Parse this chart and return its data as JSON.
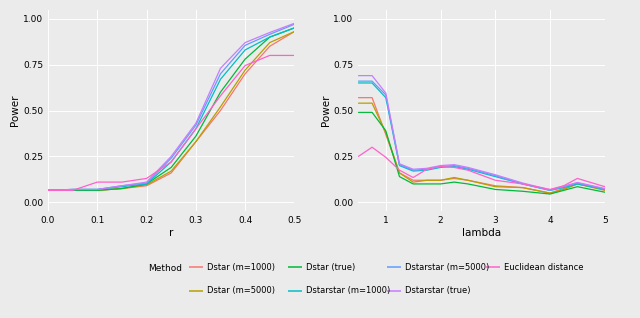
{
  "left_xlabel": "r",
  "right_xlabel": "lambda",
  "ylabel": "Power",
  "bg_color": "#EBEBEB",
  "grid_color": "white",
  "left_xlim": [
    0.0,
    0.5
  ],
  "right_xlim": [
    0.5,
    5.0
  ],
  "ylim": [
    -0.05,
    1.05
  ],
  "yticks": [
    0.0,
    0.25,
    0.5,
    0.75,
    1.0
  ],
  "left_xticks": [
    0.0,
    0.1,
    0.2,
    0.3,
    0.4,
    0.5
  ],
  "right_xticks": [
    1,
    2,
    3,
    4,
    5
  ],
  "series": [
    {
      "label": "Dstar (m=1000)",
      "color": "#F8766D",
      "lw": 0.9,
      "left_x": [
        0.0,
        0.05,
        0.1,
        0.15,
        0.2,
        0.25,
        0.3,
        0.35,
        0.4,
        0.45,
        0.5
      ],
      "left_y": [
        0.065,
        0.065,
        0.065,
        0.075,
        0.09,
        0.16,
        0.33,
        0.5,
        0.7,
        0.85,
        0.93
      ],
      "right_x": [
        0.5,
        0.75,
        1.0,
        1.25,
        1.5,
        1.75,
        2.0,
        2.25,
        2.5,
        3.0,
        3.5,
        4.0,
        4.25,
        4.5,
        5.0
      ],
      "right_y": [
        0.57,
        0.57,
        0.37,
        0.16,
        0.12,
        0.12,
        0.12,
        0.13,
        0.12,
        0.09,
        0.08,
        0.05,
        0.075,
        0.1,
        0.07
      ]
    },
    {
      "label": "Dstar (m=5000)",
      "color": "#B79F00",
      "lw": 0.9,
      "left_x": [
        0.0,
        0.05,
        0.1,
        0.15,
        0.2,
        0.25,
        0.3,
        0.35,
        0.4,
        0.45,
        0.5
      ],
      "left_y": [
        0.065,
        0.065,
        0.065,
        0.075,
        0.095,
        0.17,
        0.33,
        0.52,
        0.72,
        0.87,
        0.93
      ],
      "right_x": [
        0.5,
        0.75,
        1.0,
        1.25,
        1.5,
        1.75,
        2.0,
        2.25,
        2.5,
        3.0,
        3.5,
        4.0,
        4.25,
        4.5,
        5.0
      ],
      "right_y": [
        0.54,
        0.54,
        0.38,
        0.16,
        0.11,
        0.12,
        0.12,
        0.135,
        0.12,
        0.085,
        0.08,
        0.05,
        0.07,
        0.1,
        0.065
      ]
    },
    {
      "label": "Dstar (true)",
      "color": "#00BA38",
      "lw": 0.9,
      "left_x": [
        0.0,
        0.05,
        0.1,
        0.15,
        0.2,
        0.25,
        0.3,
        0.35,
        0.4,
        0.45,
        0.5
      ],
      "left_y": [
        0.065,
        0.065,
        0.065,
        0.075,
        0.1,
        0.19,
        0.36,
        0.6,
        0.78,
        0.9,
        0.95
      ],
      "right_x": [
        0.5,
        0.75,
        1.0,
        1.25,
        1.5,
        1.75,
        2.0,
        2.25,
        2.5,
        3.0,
        3.5,
        4.0,
        4.25,
        4.5,
        5.0
      ],
      "right_y": [
        0.49,
        0.49,
        0.39,
        0.14,
        0.1,
        0.1,
        0.1,
        0.11,
        0.1,
        0.07,
        0.06,
        0.045,
        0.065,
        0.085,
        0.055
      ]
    },
    {
      "label": "Dstarstar (m=1000)",
      "color": "#00BFC4",
      "lw": 0.9,
      "left_x": [
        0.0,
        0.05,
        0.1,
        0.15,
        0.2,
        0.25,
        0.3,
        0.35,
        0.4,
        0.45,
        0.5
      ],
      "left_y": [
        0.065,
        0.07,
        0.07,
        0.085,
        0.1,
        0.22,
        0.4,
        0.67,
        0.83,
        0.9,
        0.95
      ],
      "right_x": [
        0.5,
        0.75,
        1.0,
        1.25,
        1.5,
        1.75,
        2.0,
        2.25,
        2.5,
        3.0,
        3.5,
        4.0,
        4.25,
        4.5,
        5.0
      ],
      "right_y": [
        0.65,
        0.65,
        0.57,
        0.2,
        0.17,
        0.175,
        0.19,
        0.195,
        0.18,
        0.14,
        0.1,
        0.065,
        0.08,
        0.1,
        0.07
      ]
    },
    {
      "label": "Dstarstar (m=5000)",
      "color": "#619CFF",
      "lw": 0.9,
      "left_x": [
        0.0,
        0.05,
        0.1,
        0.15,
        0.2,
        0.25,
        0.3,
        0.35,
        0.4,
        0.45,
        0.5
      ],
      "left_y": [
        0.065,
        0.07,
        0.07,
        0.09,
        0.105,
        0.24,
        0.42,
        0.7,
        0.855,
        0.915,
        0.97
      ],
      "right_x": [
        0.5,
        0.75,
        1.0,
        1.25,
        1.5,
        1.75,
        2.0,
        2.25,
        2.5,
        3.0,
        3.5,
        4.0,
        4.25,
        4.5,
        5.0
      ],
      "right_y": [
        0.66,
        0.66,
        0.585,
        0.205,
        0.175,
        0.18,
        0.195,
        0.2,
        0.185,
        0.145,
        0.1,
        0.065,
        0.085,
        0.105,
        0.072
      ]
    },
    {
      "label": "Dstarstar (true)",
      "color": "#C77CFF",
      "lw": 0.9,
      "left_x": [
        0.0,
        0.05,
        0.1,
        0.15,
        0.2,
        0.25,
        0.3,
        0.35,
        0.4,
        0.45,
        0.5
      ],
      "left_y": [
        0.065,
        0.07,
        0.07,
        0.09,
        0.11,
        0.25,
        0.43,
        0.73,
        0.87,
        0.925,
        0.975
      ],
      "right_x": [
        0.5,
        0.75,
        1.0,
        1.25,
        1.5,
        1.75,
        2.0,
        2.25,
        2.5,
        3.0,
        3.5,
        4.0,
        4.25,
        4.5,
        5.0
      ],
      "right_y": [
        0.69,
        0.69,
        0.595,
        0.21,
        0.18,
        0.185,
        0.2,
        0.205,
        0.19,
        0.15,
        0.105,
        0.068,
        0.088,
        0.108,
        0.075
      ]
    },
    {
      "label": "Euclidean distance",
      "color": "#FF61CC",
      "lw": 0.9,
      "left_x": [
        0.0,
        0.05,
        0.1,
        0.15,
        0.2,
        0.25,
        0.3,
        0.35,
        0.4,
        0.45,
        0.5
      ],
      "left_y": [
        0.065,
        0.065,
        0.11,
        0.11,
        0.13,
        0.22,
        0.4,
        0.58,
        0.745,
        0.8,
        0.8
      ],
      "right_x": [
        0.5,
        0.75,
        1.0,
        1.25,
        1.5,
        1.75,
        2.0,
        2.25,
        2.5,
        3.0,
        3.5,
        4.0,
        4.25,
        4.5,
        5.0
      ],
      "right_y": [
        0.25,
        0.3,
        0.245,
        0.175,
        0.135,
        0.18,
        0.195,
        0.19,
        0.175,
        0.12,
        0.1,
        0.07,
        0.09,
        0.13,
        0.085
      ]
    }
  ],
  "legend_rows": [
    [
      {
        "label": "Dstar (m=1000)",
        "color": "#F8766D"
      },
      {
        "label": "Dstar (true)",
        "color": "#00BA38"
      },
      {
        "label": "Dstarstar (m=5000)",
        "color": "#619CFF"
      },
      {
        "label": "Euclidean distance",
        "color": "#FF61CC"
      }
    ],
    [
      {
        "label": "Dstar (m=5000)",
        "color": "#B79F00"
      },
      {
        "label": "Dstarstar (m=1000)",
        "color": "#00BFC4"
      },
      {
        "label": "Dstarstar (true)",
        "color": "#C77CFF"
      }
    ]
  ]
}
